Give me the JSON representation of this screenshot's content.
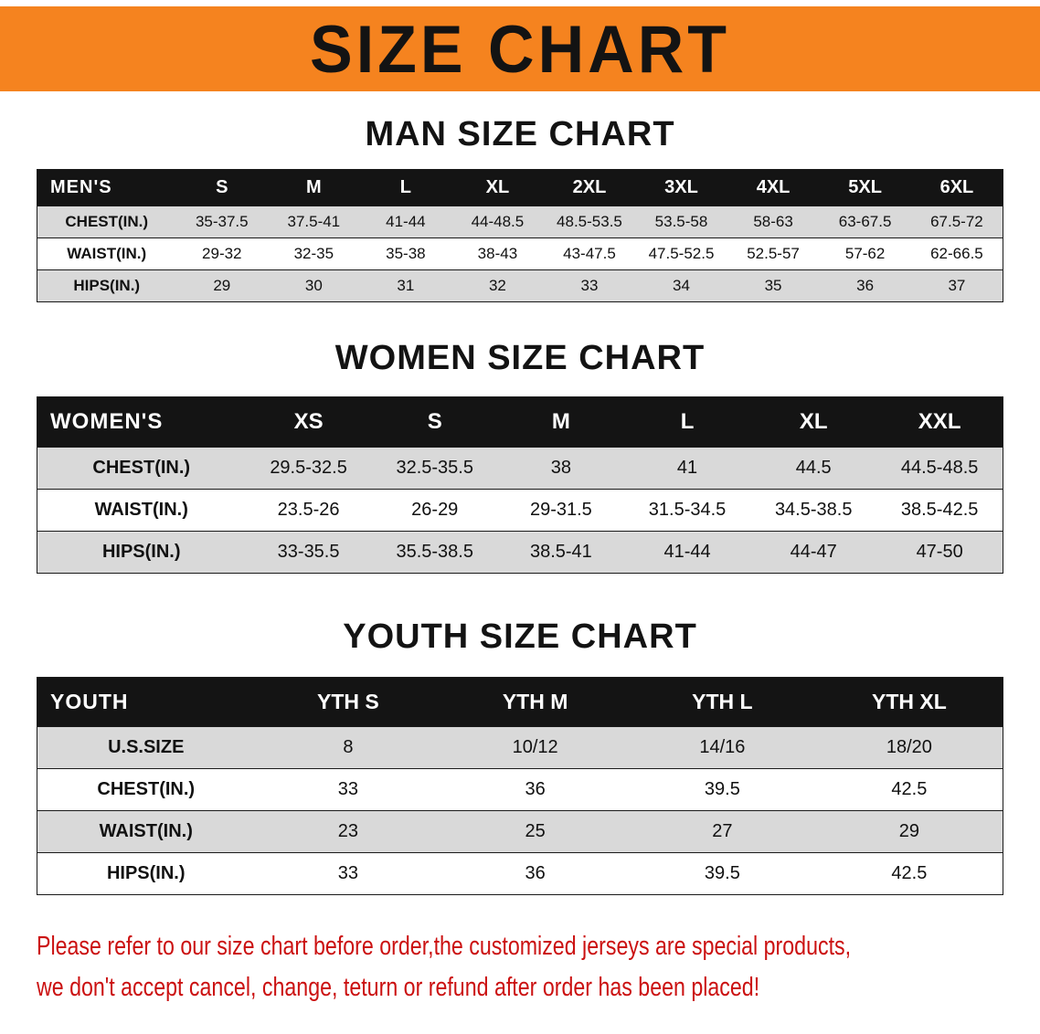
{
  "banner": {
    "title": "SIZE CHART"
  },
  "sections": [
    {
      "heading": "MAN SIZE CHART",
      "table": {
        "header_label": "MEN'S",
        "sizes": [
          "S",
          "M",
          "L",
          "XL",
          "2XL",
          "3XL",
          "4XL",
          "5XL",
          "6XL"
        ],
        "rows": [
          {
            "label": "CHEST(IN.)",
            "values": [
              "35-37.5",
              "37.5-41",
              "41-44",
              "44-48.5",
              "48.5-53.5",
              "53.5-58",
              "58-63",
              "63-67.5",
              "67.5-72"
            ]
          },
          {
            "label": "WAIST(IN.)",
            "values": [
              "29-32",
              "32-35",
              "35-38",
              "38-43",
              "43-47.5",
              "47.5-52.5",
              "52.5-57",
              "57-62",
              "62-66.5"
            ]
          },
          {
            "label": "HIPS(IN.)",
            "values": [
              "29",
              "30",
              "31",
              "32",
              "33",
              "34",
              "35",
              "36",
              "37"
            ]
          }
        ]
      }
    },
    {
      "heading": "WOMEN SIZE CHART",
      "table": {
        "header_label": "WOMEN'S",
        "sizes": [
          "XS",
          "S",
          "M",
          "L",
          "XL",
          "XXL"
        ],
        "rows": [
          {
            "label": "CHEST(IN.)",
            "values": [
              "29.5-32.5",
              "32.5-35.5",
              "38",
              "41",
              "44.5",
              "44.5-48.5"
            ]
          },
          {
            "label": "WAIST(IN.)",
            "values": [
              "23.5-26",
              "26-29",
              "29-31.5",
              "31.5-34.5",
              "34.5-38.5",
              "38.5-42.5"
            ]
          },
          {
            "label": "HIPS(IN.)",
            "values": [
              "33-35.5",
              "35.5-38.5",
              "38.5-41",
              "41-44",
              "44-47",
              "47-50"
            ]
          }
        ]
      }
    },
    {
      "heading": "YOUTH SIZE CHART",
      "table": {
        "header_label": "YOUTH",
        "sizes": [
          "YTH S",
          "YTH M",
          "YTH L",
          "YTH XL"
        ],
        "rows": [
          {
            "label": "U.S.SIZE",
            "values": [
              "8",
              "10/12",
              "14/16",
              "18/20"
            ]
          },
          {
            "label": "CHEST(IN.)",
            "values": [
              "33",
              "36",
              "39.5",
              "42.5"
            ]
          },
          {
            "label": "WAIST(IN.)",
            "values": [
              "23",
              "25",
              "27",
              "29"
            ]
          },
          {
            "label": "HIPS(IN.)",
            "values": [
              "33",
              "36",
              "39.5",
              "42.5"
            ]
          }
        ]
      }
    }
  ],
  "footer": {
    "line1": "Please refer to our size chart before order,the customized jerseys are special products,",
    "line2": "we don't accept cancel, change, teturn or refund after order has been placed!"
  },
  "colors": {
    "banner_orange": "#f5831f",
    "header_black": "#141414",
    "stripe_gray": "#d9d9d9",
    "notice_red": "#cb1111"
  }
}
